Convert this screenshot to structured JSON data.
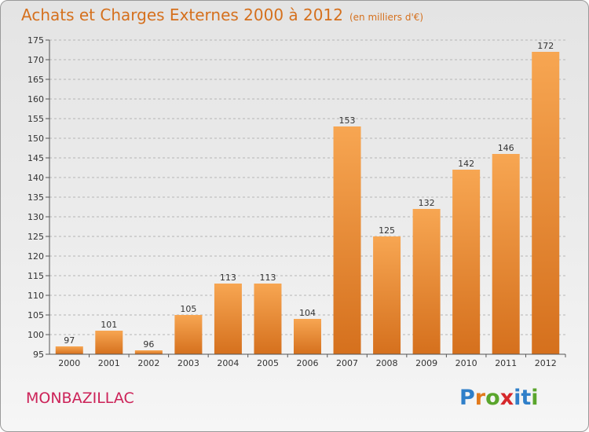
{
  "title": "Achats et Charges Externes 2000 à 2012",
  "unit": "(en milliers d'€)",
  "commune": "MONBAZILLAC",
  "logo": {
    "letters": [
      "P",
      "r",
      "o",
      "x",
      "i",
      "t",
      "i"
    ],
    "colors": [
      "#2f7fc9",
      "#e27a1c",
      "#5aa52c",
      "#d6282b",
      "#2f7fc9",
      "#2f7fc9",
      "#5aa52c"
    ]
  },
  "colors": {
    "bar_light": "#f7a652",
    "bar_dark": "#d5701d",
    "title": "#d5701d",
    "commune": "#cc2258"
  },
  "chart_data": {
    "type": "bar",
    "categories": [
      "2000",
      "2001",
      "2002",
      "2003",
      "2004",
      "2005",
      "2006",
      "2007",
      "2008",
      "2009",
      "2010",
      "2011",
      "2012"
    ],
    "values": [
      97,
      101,
      96,
      105,
      113,
      113,
      104,
      153,
      125,
      132,
      142,
      146,
      172
    ],
    "ylim": [
      95,
      175
    ],
    "yticks": [
      95,
      100,
      105,
      110,
      115,
      120,
      125,
      130,
      135,
      140,
      145,
      150,
      155,
      160,
      165,
      170,
      175
    ],
    "grid": true,
    "title": "Achats et Charges Externes 2000 à 2012",
    "xlabel": "",
    "ylabel": ""
  }
}
